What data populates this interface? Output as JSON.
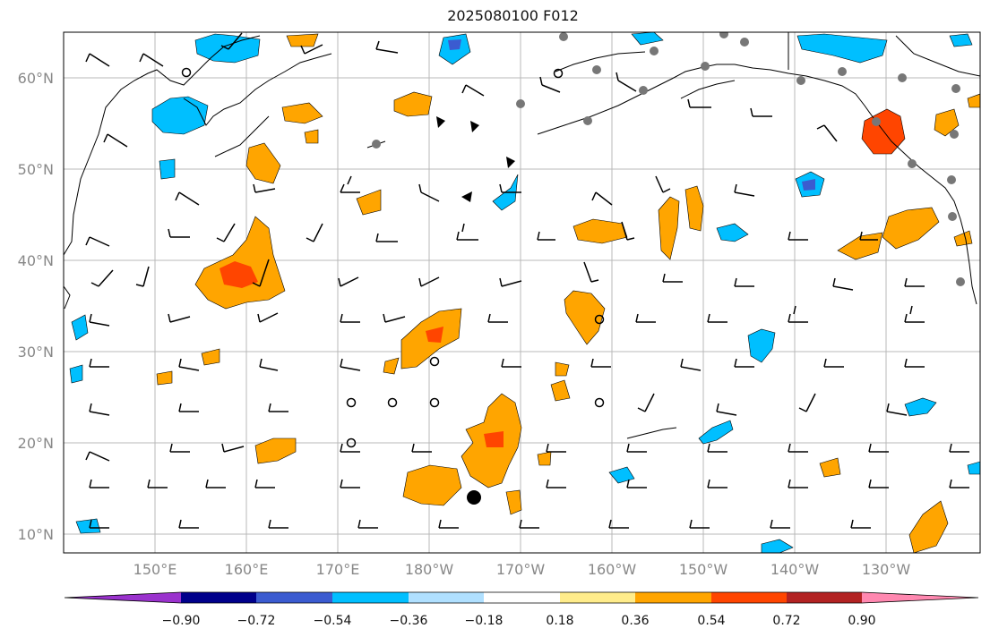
{
  "title": "2025080100 F012",
  "map": {
    "lat_labels": [
      "60°N",
      "50°N",
      "40°N",
      "30°N",
      "20°N",
      "10°N"
    ],
    "lon_labels": [
      "150°E",
      "160°E",
      "170°E",
      "180°W",
      "170°W",
      "160°W",
      "150°W",
      "140°W",
      "130°W"
    ]
  },
  "colorbar": {
    "colors": [
      "#9a32cd",
      "#00008b",
      "#3b5bd0",
      "#00bfff",
      "#b0e0ff",
      "#ffffff",
      "#ffec8b",
      "#ffa500",
      "#ff4500",
      "#b22222",
      "#ff88b0"
    ],
    "bounds": [
      "−0.90",
      "−0.72",
      "−0.54",
      "−0.36",
      "−0.18",
      "0.18",
      "0.36",
      "0.54",
      "0.72",
      "0.90"
    ]
  },
  "palette": {
    "positive_light": "#ffec8b",
    "positive_mid": "#ffa500",
    "positive_strong": "#ff4500",
    "positive_max": "#b22222",
    "negative_light": "#b0e0ff",
    "negative_mid": "#00bfff",
    "negative_strong": "#3b5bd0",
    "station_filled": "#777777"
  }
}
